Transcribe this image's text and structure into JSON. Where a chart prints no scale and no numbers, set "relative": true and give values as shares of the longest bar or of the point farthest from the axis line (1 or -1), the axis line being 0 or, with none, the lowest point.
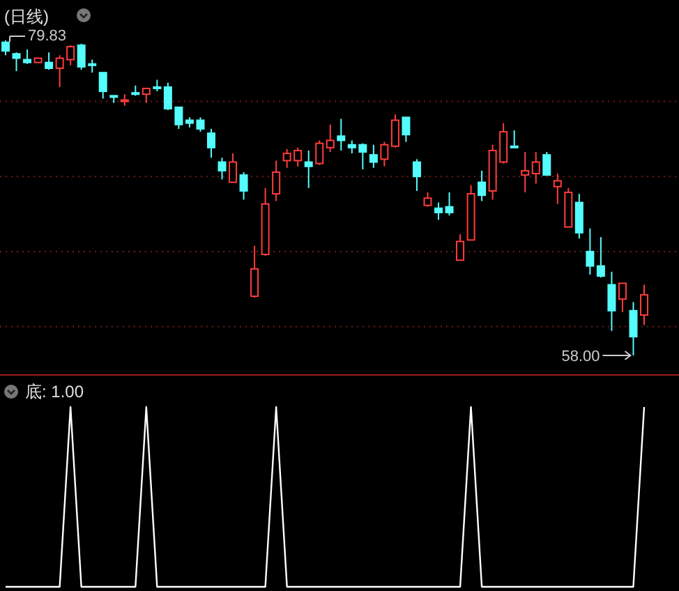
{
  "chart_data": [
    {
      "type": "candlestick",
      "title": "(日线)",
      "grid": true,
      "yticks": [
        {
          "value": 75.6,
          "label": null
        },
        {
          "value": 70.4,
          "label": null
        },
        {
          "value": 65.2,
          "label": null
        },
        {
          "value": 60.0,
          "label": null
        }
      ],
      "annotations": [
        "79.83",
        "58.00"
      ],
      "categories": [
        null,
        null,
        null,
        null,
        null,
        null,
        null,
        null,
        null,
        null,
        null,
        null,
        null,
        null,
        null,
        null,
        null,
        null,
        null,
        null,
        null,
        null,
        null,
        null,
        null,
        null,
        null,
        null,
        null,
        null,
        null,
        null,
        null,
        null,
        null,
        null,
        null,
        null,
        null,
        null,
        null,
        null,
        null,
        null,
        null,
        null,
        null,
        null,
        null,
        null,
        null,
        null,
        null,
        null,
        null,
        null,
        null,
        null,
        null,
        null
      ],
      "ohlc": [
        [
          79.7,
          79.83,
          78.8,
          79.1
        ],
        [
          78.9,
          79.0,
          77.7,
          78.6
        ],
        [
          78.5,
          79.2,
          78.2,
          78.3
        ],
        [
          78.3,
          78.6,
          78.3,
          78.6
        ],
        [
          78.3,
          79.0,
          77.8,
          77.9
        ],
        [
          77.9,
          78.8,
          76.6,
          78.6
        ],
        [
          78.5,
          79.5,
          78.1,
          79.4
        ],
        [
          79.5,
          79.6,
          77.8,
          78.0
        ],
        [
          78.2,
          78.5,
          77.6,
          78.1
        ],
        [
          77.6,
          77.6,
          75.8,
          76.3
        ],
        [
          76.0,
          76.0,
          75.5,
          75.9
        ],
        [
          75.6,
          76.1,
          75.3,
          75.7
        ],
        [
          76.2,
          76.7,
          76.0,
          76.1
        ],
        [
          76.1,
          76.5,
          75.5,
          76.5
        ],
        [
          76.6,
          77.1,
          76.3,
          76.5
        ],
        [
          76.6,
          76.9,
          75.0,
          75.1
        ],
        [
          75.2,
          75.2,
          73.7,
          74.0
        ],
        [
          74.3,
          74.5,
          73.8,
          74.1
        ],
        [
          74.3,
          74.5,
          73.5,
          73.7
        ],
        [
          73.4,
          73.7,
          71.7,
          72.4
        ],
        [
          71.4,
          71.7,
          70.2,
          70.8
        ],
        [
          70.0,
          72.0,
          70.0,
          71.4
        ],
        [
          70.5,
          70.7,
          68.8,
          69.4
        ],
        [
          62.1,
          65.6,
          62.0,
          64.0
        ],
        [
          65.0,
          69.6,
          64.9,
          68.5
        ],
        [
          69.2,
          71.5,
          68.7,
          70.7
        ],
        [
          71.5,
          72.3,
          71.0,
          72.0
        ],
        [
          71.5,
          72.4,
          71.1,
          72.2
        ],
        [
          71.4,
          72.2,
          69.6,
          71.1
        ],
        [
          71.3,
          72.9,
          71.2,
          72.7
        ],
        [
          72.4,
          74.0,
          72.1,
          72.9
        ],
        [
          73.2,
          74.4,
          72.2,
          72.9
        ],
        [
          72.6,
          72.9,
          72.0,
          72.4
        ],
        [
          72.6,
          72.7,
          70.9,
          72.1
        ],
        [
          71.9,
          72.6,
          71.0,
          71.4
        ],
        [
          71.6,
          72.8,
          71.1,
          72.6
        ],
        [
          72.5,
          74.7,
          72.4,
          74.3
        ],
        [
          74.5,
          74.5,
          72.8,
          73.3
        ],
        [
          71.4,
          71.6,
          69.4,
          70.4
        ],
        [
          68.4,
          69.3,
          68.3,
          68.9
        ],
        [
          68.2,
          68.6,
          67.4,
          67.9
        ],
        [
          68.3,
          69.3,
          67.7,
          67.9
        ],
        [
          64.6,
          66.4,
          64.6,
          65.9
        ],
        [
          66.0,
          69.8,
          66.0,
          69.2
        ],
        [
          70.0,
          70.8,
          68.7,
          69.1
        ],
        [
          69.4,
          72.6,
          68.8,
          72.2
        ],
        [
          71.4,
          74.1,
          71.3,
          73.5
        ],
        [
          72.5,
          73.6,
          72.4,
          72.4
        ],
        [
          70.5,
          72.1,
          69.3,
          70.8
        ],
        [
          70.6,
          72.1,
          69.9,
          71.4
        ],
        [
          71.9,
          72.1,
          70.5,
          70.5
        ],
        [
          69.7,
          70.6,
          68.5,
          70.1
        ],
        [
          66.9,
          69.6,
          66.9,
          69.3
        ],
        [
          68.6,
          69.2,
          66.1,
          66.5
        ],
        [
          65.2,
          66.8,
          63.6,
          64.2
        ],
        [
          64.2,
          66.2,
          63.4,
          63.5
        ],
        [
          62.9,
          63.8,
          59.7,
          61.1
        ],
        [
          61.9,
          63.0,
          61.0,
          63.0
        ],
        [
          61.1,
          61.7,
          58.0,
          59.3
        ],
        [
          60.8,
          62.9,
          60.1,
          62.2
        ]
      ]
    },
    {
      "type": "line",
      "title": "底: 1.00",
      "relative": true,
      "categories": [
        null,
        null,
        null,
        null,
        null,
        null,
        null,
        null,
        null,
        null,
        null,
        null,
        null,
        null,
        null,
        null,
        null,
        null,
        null,
        null,
        null,
        null,
        null,
        null,
        null,
        null,
        null,
        null,
        null,
        null,
        null,
        null,
        null,
        null,
        null,
        null,
        null,
        null,
        null,
        null,
        null,
        null,
        null,
        null,
        null,
        null,
        null,
        null,
        null,
        null,
        null,
        null,
        null,
        null,
        null,
        null,
        null,
        null,
        null,
        null
      ],
      "series": [
        {
          "color": "#ffffff",
          "values": [
            0,
            0,
            0,
            0,
            0,
            0,
            1,
            0,
            0,
            0,
            0,
            0,
            0,
            1,
            0,
            0,
            0,
            0,
            0,
            0,
            0,
            0,
            0,
            0,
            0,
            1,
            0,
            0,
            0,
            0,
            0,
            0,
            0,
            0,
            0,
            0,
            0,
            0,
            0,
            0,
            0,
            0,
            0,
            1,
            0,
            0,
            0,
            0,
            0,
            0,
            0,
            0,
            0,
            0,
            0,
            0,
            0,
            0,
            0,
            1
          ]
        }
      ]
    }
  ]
}
